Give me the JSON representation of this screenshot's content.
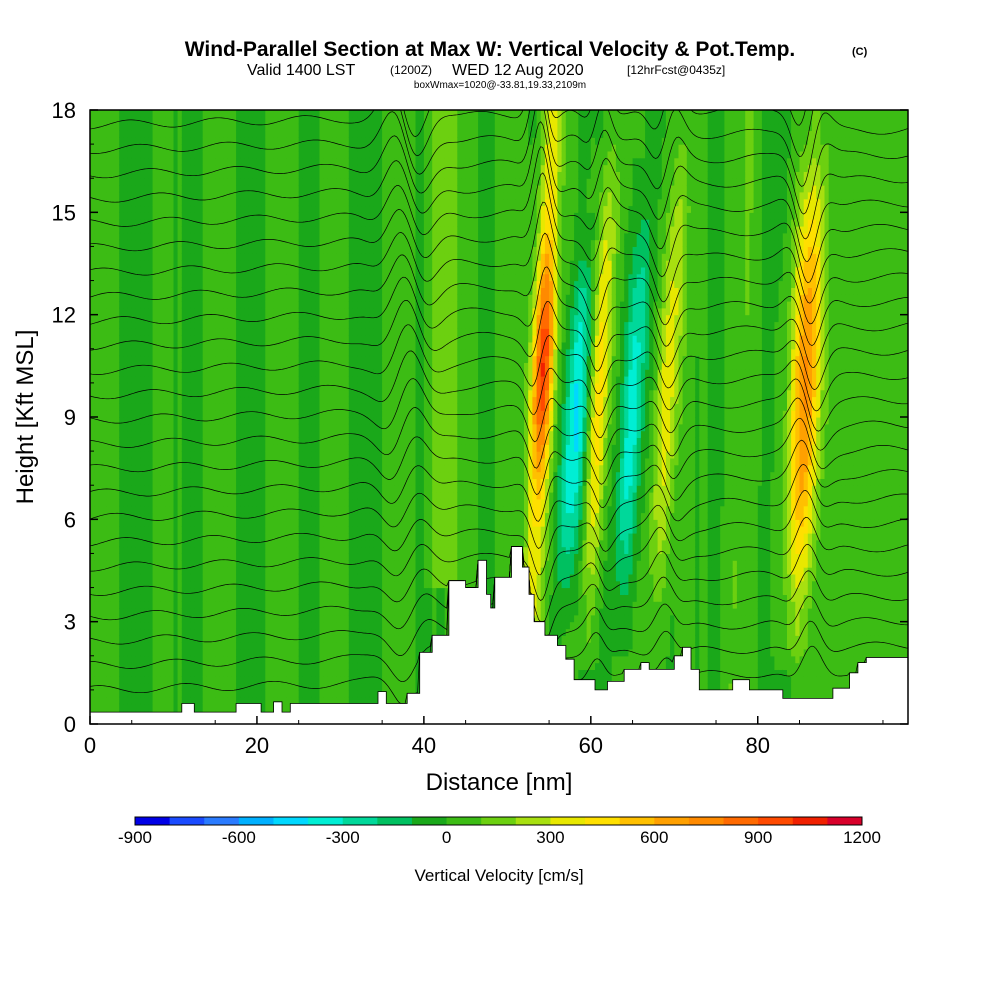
{
  "title": {
    "main": "Wind-Parallel Section at Max W: Vertical Velocity & Pot.Temp.",
    "copyright": "(C)",
    "valid_prefix": "Valid 1400 LST",
    "valid_z": "(1200Z)",
    "valid_date": "WED 12 Aug 2020",
    "forecast": "[12hrFcst@0435z]",
    "boxwmax": "boxWmax=1020@-33.81,19.33,2109m"
  },
  "chart_data": {
    "type": "heatmap",
    "xlabel": "Distance [nm]",
    "ylabel": "Height [Kft MSL]",
    "xlim": [
      0,
      98
    ],
    "ylim": [
      0,
      18
    ],
    "x_ticks": [
      "0",
      "20",
      "40",
      "60",
      "80"
    ],
    "y_ticks": [
      "0",
      "3",
      "6",
      "9",
      "12",
      "15",
      "18"
    ],
    "grid": false,
    "field": "Vertical Velocity",
    "colorbar": {
      "label": "Vertical Velocity [cm/s]",
      "tick_labels": [
        "-900",
        "-600",
        "-300",
        "0",
        "300",
        "600",
        "900",
        "1200"
      ],
      "bounds": [
        -900,
        1200
      ],
      "step": 100,
      "colors": [
        "#0000e6",
        "#1a4bff",
        "#2a7bff",
        "#00b0ff",
        "#00d8ff",
        "#00eed4",
        "#00d89a",
        "#00c060",
        "#1aa81a",
        "#3cbc14",
        "#6cd010",
        "#a8e010",
        "#e8e800",
        "#ffe000",
        "#ffc000",
        "#ffa000",
        "#ff8a00",
        "#ff6a00",
        "#ff4a00",
        "#f02000",
        "#d8002a"
      ]
    },
    "terrain_kft": [
      [
        0,
        0.35
      ],
      [
        11,
        0.35
      ],
      [
        11,
        0.6
      ],
      [
        12.5,
        0.6
      ],
      [
        12.5,
        0.35
      ],
      [
        17.5,
        0.35
      ],
      [
        17.5,
        0.6
      ],
      [
        20.5,
        0.6
      ],
      [
        20.5,
        0.35
      ],
      [
        22,
        0.35
      ],
      [
        22,
        0.65
      ],
      [
        23,
        0.65
      ],
      [
        23,
        0.35
      ],
      [
        24,
        0.35
      ],
      [
        24,
        0.6
      ],
      [
        34.5,
        0.6
      ],
      [
        34.5,
        0.95
      ],
      [
        35.5,
        0.95
      ],
      [
        35.5,
        0.6
      ],
      [
        38,
        0.6
      ],
      [
        38,
        0.9
      ],
      [
        39.5,
        0.9
      ],
      [
        39.5,
        2.1
      ],
      [
        41,
        2.1
      ],
      [
        41,
        2.6
      ],
      [
        43,
        2.6
      ],
      [
        43,
        4.2
      ],
      [
        45,
        4.2
      ],
      [
        45,
        4.0
      ],
      [
        46.5,
        4.0
      ],
      [
        46.5,
        4.8
      ],
      [
        47.5,
        4.8
      ],
      [
        47.5,
        3.8
      ],
      [
        48,
        3.8
      ],
      [
        48,
        3.4
      ],
      [
        48.5,
        3.4
      ],
      [
        48.5,
        4.3
      ],
      [
        50.5,
        4.3
      ],
      [
        50.5,
        5.2
      ],
      [
        51.8,
        5.2
      ],
      [
        51.8,
        4.6
      ],
      [
        52.6,
        4.6
      ],
      [
        52.6,
        3.8
      ],
      [
        53.2,
        3.8
      ],
      [
        53.2,
        3.0
      ],
      [
        54.5,
        3.0
      ],
      [
        54.5,
        2.6
      ],
      [
        56,
        2.6
      ],
      [
        56,
        2.3
      ],
      [
        57,
        2.3
      ],
      [
        57,
        1.9
      ],
      [
        58,
        1.9
      ],
      [
        58,
        1.3
      ],
      [
        60.5,
        1.3
      ],
      [
        60.5,
        1.0
      ],
      [
        62,
        1.0
      ],
      [
        62,
        1.25
      ],
      [
        64,
        1.25
      ],
      [
        64,
        1.6
      ],
      [
        66,
        1.6
      ],
      [
        66,
        1.8
      ],
      [
        67,
        1.8
      ],
      [
        67,
        1.6
      ],
      [
        70,
        1.6
      ],
      [
        70,
        2.0
      ],
      [
        71,
        2.0
      ],
      [
        71,
        2.25
      ],
      [
        72,
        2.25
      ],
      [
        72,
        1.6
      ],
      [
        73,
        1.6
      ],
      [
        73,
        1.0
      ],
      [
        77,
        1.0
      ],
      [
        77,
        1.3
      ],
      [
        79,
        1.3
      ],
      [
        79,
        1.0
      ],
      [
        83,
        1.0
      ],
      [
        83,
        0.75
      ],
      [
        89,
        0.75
      ],
      [
        89,
        1.05
      ],
      [
        91,
        1.05
      ],
      [
        91,
        1.5
      ],
      [
        92,
        1.5
      ],
      [
        92,
        1.8
      ],
      [
        93,
        1.8
      ],
      [
        93,
        1.95
      ],
      [
        98,
        1.95
      ]
    ],
    "w_features": [
      {
        "kind": "updraft",
        "x_bottom": 53.0,
        "x_top": 55.5,
        "z_bottom": 2.8,
        "z_top": 18.0,
        "width_nm": 1.3,
        "peak_cms": 1020
      },
      {
        "kind": "downdraft",
        "x_bottom": 56.8,
        "x_top": 59.5,
        "z_bottom": 3.0,
        "z_top": 14.5,
        "width_nm": 1.4,
        "peak_cms": -450
      },
      {
        "kind": "updraft",
        "x_bottom": 59.6,
        "x_top": 62.6,
        "z_bottom": 2.2,
        "z_top": 18.0,
        "width_nm": 1.2,
        "peak_cms": 480
      },
      {
        "kind": "downdraft",
        "x_bottom": 63.5,
        "x_top": 66.5,
        "z_bottom": 2.5,
        "z_top": 16.0,
        "width_nm": 1.3,
        "peak_cms": -380
      },
      {
        "kind": "updraft",
        "x_bottom": 67.5,
        "x_top": 71.0,
        "z_bottom": 2.0,
        "z_top": 18.0,
        "width_nm": 1.4,
        "peak_cms": 380
      },
      {
        "kind": "updraft",
        "x_bottom": 84.5,
        "x_top": 87.0,
        "z_bottom": 2.0,
        "z_top": 18.0,
        "width_nm": 1.8,
        "peak_cms": 700
      }
    ]
  }
}
